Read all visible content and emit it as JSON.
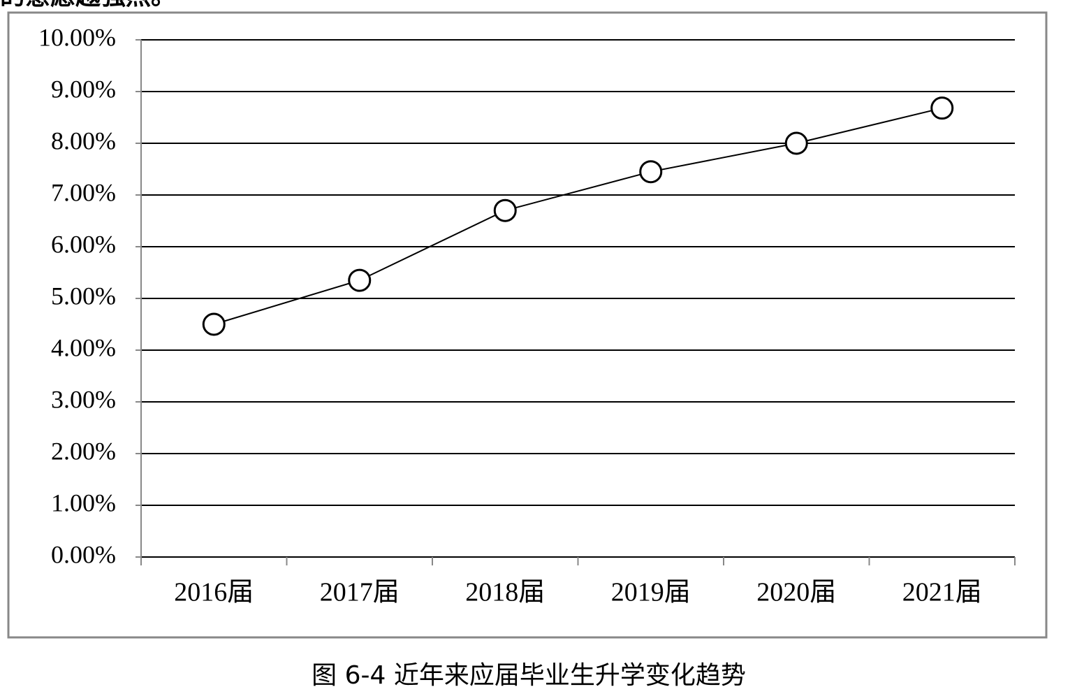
{
  "text_fragment": "的意愿越强烈。",
  "chart_data": {
    "type": "line",
    "categories": [
      "2016届",
      "2017届",
      "2018届",
      "2019届",
      "2020届",
      "2021届"
    ],
    "values": [
      4.5,
      5.35,
      6.7,
      7.45,
      8.0,
      8.68
    ],
    "color": "#000000",
    "ylim": [
      0,
      10
    ],
    "yticks": [
      {
        "value": 0,
        "label": "0.00%"
      },
      {
        "value": 1,
        "label": "1.00%"
      },
      {
        "value": 2,
        "label": "2.00%"
      },
      {
        "value": 3,
        "label": "3.00%"
      },
      {
        "value": 4,
        "label": "4.00%"
      },
      {
        "value": 5,
        "label": "5.00%"
      },
      {
        "value": 6,
        "label": "6.00%"
      },
      {
        "value": 7,
        "label": "7.00%"
      },
      {
        "value": 8,
        "label": "8.00%"
      },
      {
        "value": 9,
        "label": "9.00%"
      },
      {
        "value": 10,
        "label": "10.00%"
      }
    ],
    "grid": true
  },
  "caption": "图 6-4 近年来应届毕业生升学变化趋势"
}
